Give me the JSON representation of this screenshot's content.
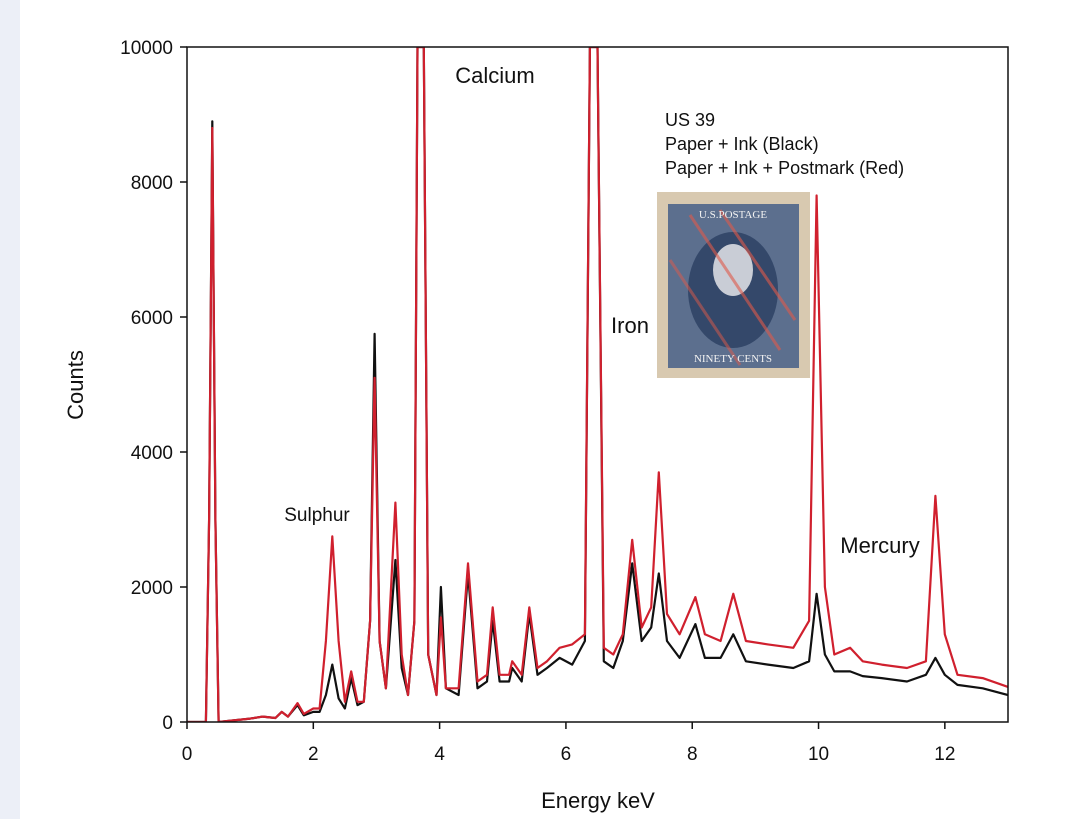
{
  "chart_data": {
    "type": "line",
    "xlabel": "Energy keV",
    "ylabel": "Counts",
    "xlim": [
      0,
      13
    ],
    "ylim": [
      0,
      10000
    ],
    "xticks": [
      0,
      2,
      4,
      6,
      8,
      10,
      12
    ],
    "yticks": [
      0,
      2000,
      4000,
      6000,
      8000,
      10000
    ],
    "annotations": [
      {
        "text": "Calcium"
      },
      {
        "text": "Iron"
      },
      {
        "text": "Sulphur"
      },
      {
        "text": "Mercury"
      },
      {
        "text": "US 39"
      },
      {
        "text": "Paper + Ink (Black)"
      },
      {
        "text": "Paper + Ink + Postmark (Red)"
      }
    ],
    "stamp_text": [
      "U.S.POSTAGE",
      "NINETY CENTS"
    ],
    "x": [
      0,
      0.3,
      0.35,
      0.4,
      0.45,
      0.5,
      0.7,
      1.0,
      1.2,
      1.4,
      1.5,
      1.6,
      1.75,
      1.85,
      2.0,
      2.1,
      2.2,
      2.3,
      2.4,
      2.5,
      2.6,
      2.7,
      2.8,
      2.9,
      2.97,
      3.05,
      3.15,
      3.3,
      3.4,
      3.5,
      3.6,
      3.65,
      3.75,
      3.82,
      3.95,
      4.02,
      4.1,
      4.3,
      4.45,
      4.6,
      4.75,
      4.84,
      4.95,
      5.1,
      5.15,
      5.3,
      5.42,
      5.55,
      5.7,
      5.9,
      6.1,
      6.3,
      6.38,
      6.5,
      6.6,
      6.75,
      6.9,
      7.05,
      7.2,
      7.35,
      7.47,
      7.6,
      7.8,
      8.05,
      8.2,
      8.45,
      8.65,
      8.85,
      9.2,
      9.6,
      9.85,
      9.97,
      10.1,
      10.25,
      10.5,
      10.7,
      11.0,
      11.4,
      11.7,
      11.85,
      12.0,
      12.2,
      12.6,
      13.0
    ],
    "series": [
      {
        "name": "Paper + Ink",
        "color": "#111111",
        "values": [
          0,
          0,
          3000,
          8900,
          3000,
          0,
          20,
          50,
          80,
          60,
          150,
          80,
          250,
          100,
          150,
          150,
          400,
          850,
          350,
          200,
          650,
          250,
          300,
          1500,
          5750,
          1200,
          500,
          2400,
          800,
          400,
          1500,
          10000,
          10000,
          1000,
          400,
          2000,
          500,
          400,
          2200,
          500,
          600,
          1500,
          600,
          600,
          800,
          600,
          1600,
          700,
          800,
          950,
          850,
          1200,
          10000,
          10000,
          900,
          800,
          1200,
          2350,
          1200,
          1400,
          2200,
          1200,
          950,
          1450,
          950,
          950,
          1300,
          900,
          850,
          800,
          900,
          1900,
          1000,
          750,
          750,
          680,
          650,
          600,
          700,
          950,
          700,
          550,
          500,
          400
        ]
      },
      {
        "name": "Paper + Ink + Postmark",
        "color": "#d0202e",
        "values": [
          0,
          0,
          3000,
          8800,
          3000,
          0,
          20,
          50,
          80,
          60,
          150,
          80,
          280,
          120,
          200,
          200,
          1200,
          2750,
          1200,
          300,
          750,
          300,
          300,
          1500,
          5100,
          1200,
          500,
          3250,
          1000,
          400,
          1500,
          10000,
          10000,
          1000,
          400,
          1550,
          500,
          500,
          2350,
          600,
          700,
          1700,
          700,
          700,
          900,
          700,
          1700,
          800,
          900,
          1100,
          1150,
          1300,
          10000,
          10000,
          1100,
          1000,
          1300,
          2700,
          1400,
          1700,
          3700,
          1600,
          1300,
          1850,
          1300,
          1200,
          1900,
          1200,
          1150,
          1100,
          1500,
          7800,
          2000,
          1000,
          1100,
          900,
          850,
          800,
          900,
          3350,
          1300,
          700,
          650,
          520
        ]
      }
    ]
  }
}
